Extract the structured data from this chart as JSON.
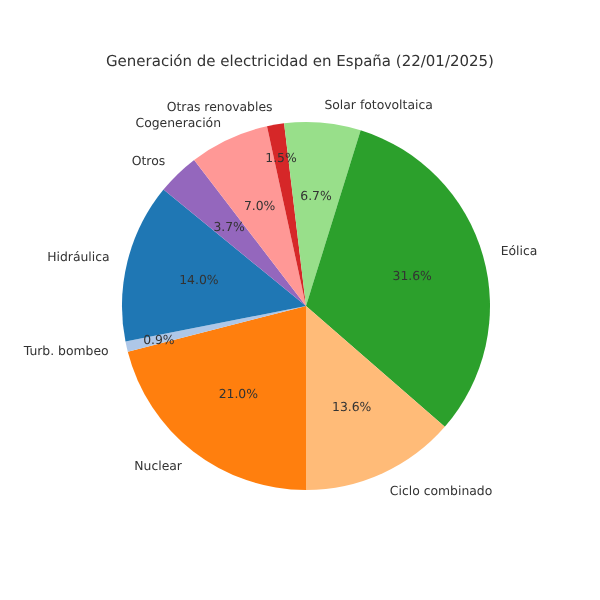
{
  "chart_data": {
    "type": "pie",
    "title": "Generación de electricidad en España (22/01/2025)",
    "categories": [
      "Nuclear",
      "Turb. bombeo",
      "Hidráulica",
      "Otros",
      "Cogeneración",
      "Otras renovables",
      "Solar fotovoltaica",
      "Eólica",
      "Ciclo combinado"
    ],
    "values": [
      21.0,
      0.9,
      14.0,
      3.7,
      7.0,
      1.5,
      6.7,
      31.6,
      13.6
    ],
    "colors": [
      "#ff7f0e",
      "#aec7e8",
      "#1f77b4",
      "#9467bd",
      "#ff9896",
      "#d62728",
      "#98df8a",
      "#2ca02c",
      "#ffbb78"
    ],
    "value_labels": [
      "21.0%",
      "0.9%",
      "14.0%",
      "3.7%",
      "7.0%",
      "1.5%",
      "6.7%",
      "31.6%",
      "13.6%"
    ]
  }
}
